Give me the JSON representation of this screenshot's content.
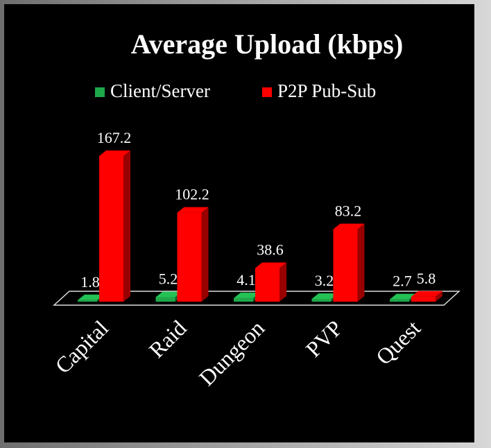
{
  "chart_data": {
    "type": "bar3d",
    "title": "Average Upload (kbps)",
    "categories": [
      "Capital",
      "Raid",
      "Dungeon",
      "PVP",
      "Quest"
    ],
    "series": [
      {
        "name": "Client/Server",
        "color": "#1fa84a",
        "values": [
          1.8,
          5.2,
          4.1,
          3.2,
          2.7
        ]
      },
      {
        "name": "P2P Pub-Sub",
        "color": "#ff0000",
        "values": [
          167.2,
          102.2,
          38.6,
          83.2,
          5.8
        ]
      }
    ],
    "legend": "top"
  }
}
